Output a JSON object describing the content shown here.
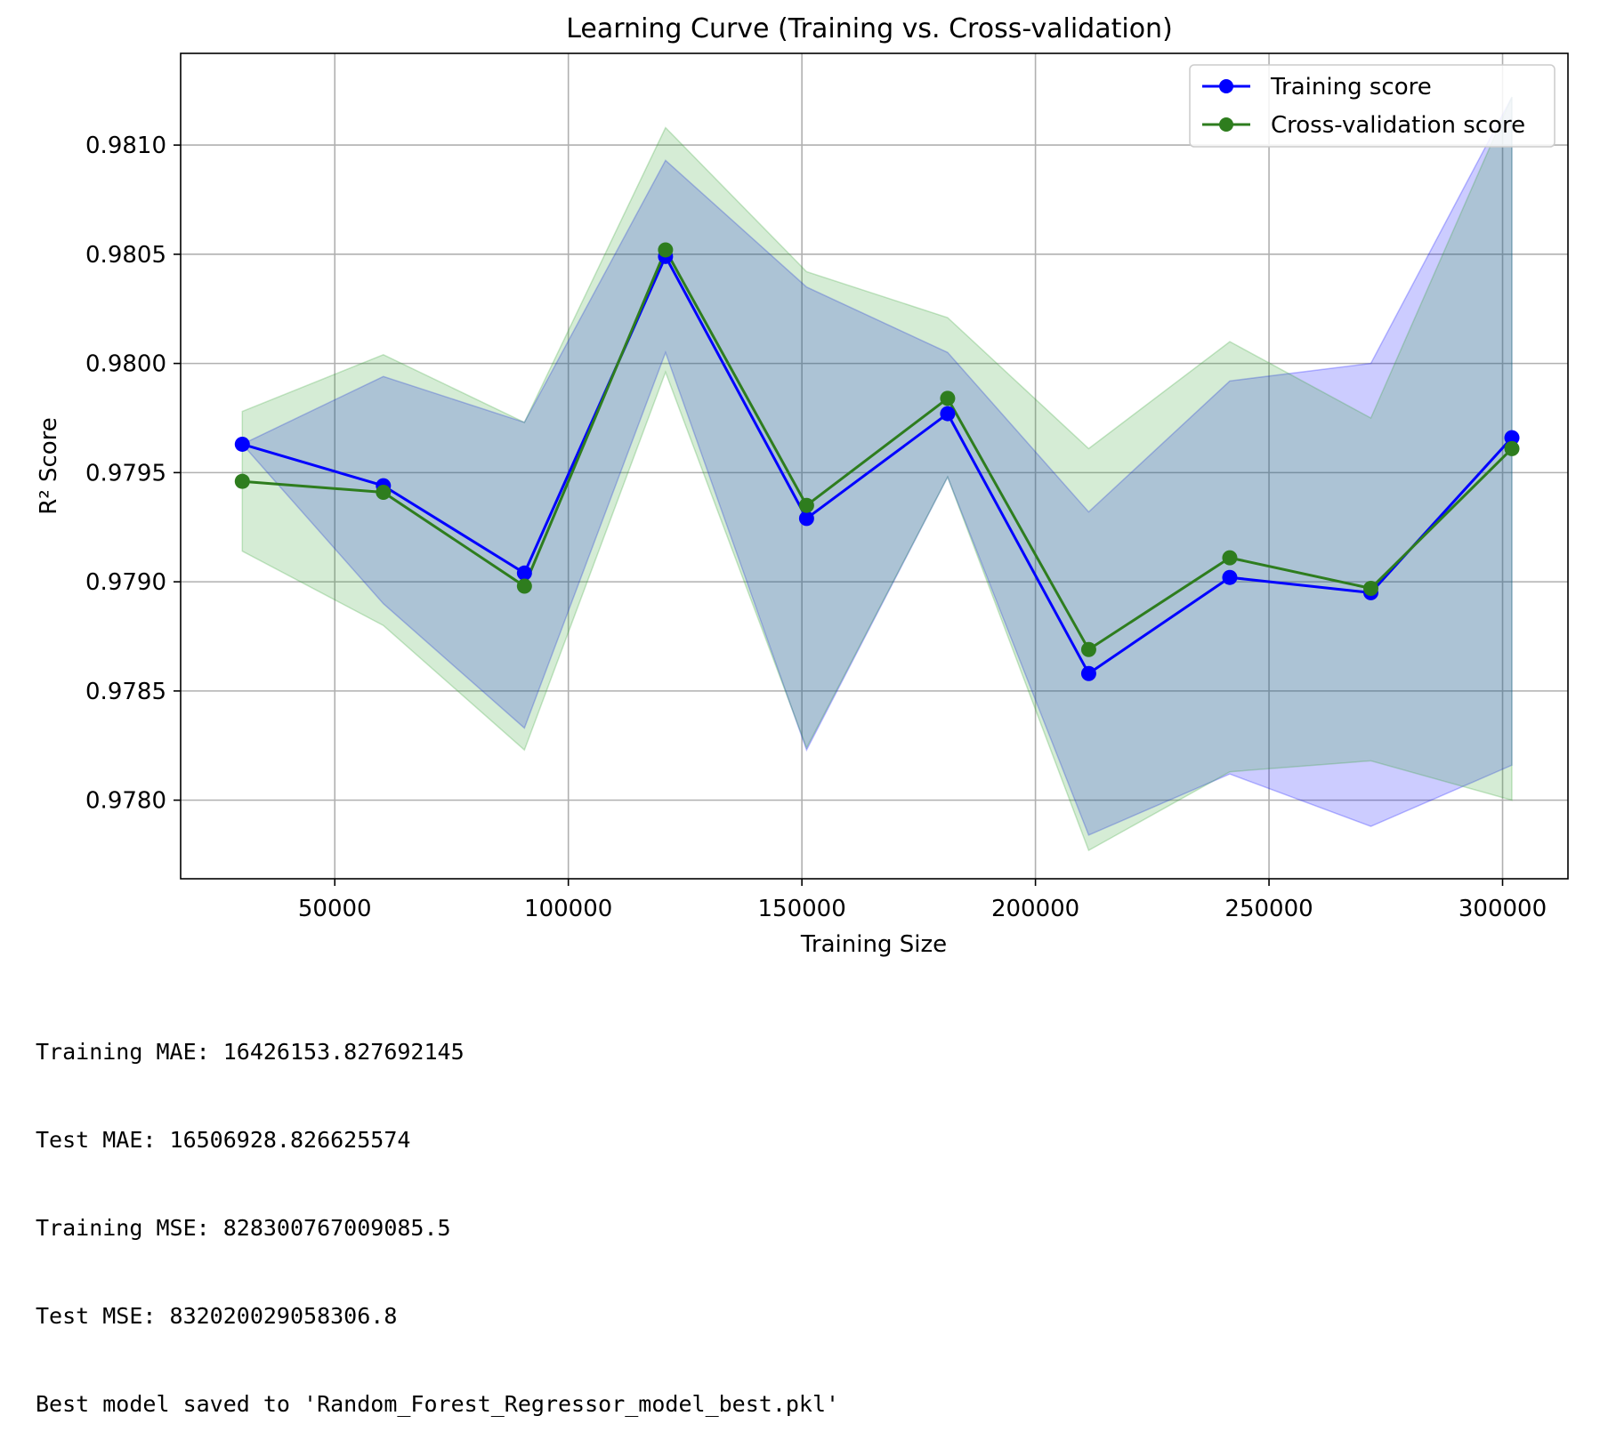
{
  "chart_data": {
    "type": "line",
    "title": "Learning Curve (Training vs. Cross-validation)",
    "xlabel": "Training Size",
    "ylabel": "R² Score",
    "xlim": [
      17000,
      314000
    ],
    "ylim": [
      0.97764,
      0.98142
    ],
    "xticks": [
      50000,
      100000,
      150000,
      200000,
      250000,
      300000
    ],
    "xtick_labels": [
      "50000",
      "100000",
      "150000",
      "200000",
      "250000",
      "300000"
    ],
    "yticks": [
      0.978,
      0.9785,
      0.979,
      0.9795,
      0.98,
      0.9805,
      0.981
    ],
    "ytick_labels": [
      "0.9780",
      "0.9785",
      "0.9790",
      "0.9795",
      "0.9800",
      "0.9805",
      "0.9810"
    ],
    "grid": true,
    "legend_position": "top-right",
    "x": [
      30200,
      60400,
      90600,
      120800,
      151000,
      181200,
      211400,
      241600,
      271800,
      302000
    ],
    "series": [
      {
        "name": "Training score",
        "color": "#0000ff",
        "band_color": "#0000ff",
        "values": [
          0.97963,
          0.97944,
          0.97904,
          0.98049,
          0.97929,
          0.97977,
          0.97858,
          0.97902,
          0.97895,
          0.97966
        ],
        "band_lower": [
          0.97963,
          0.9789,
          0.97833,
          0.98005,
          0.97823,
          0.97948,
          0.97784,
          0.97812,
          0.97788,
          0.97816
        ],
        "band_upper": [
          0.97963,
          0.97994,
          0.97973,
          0.98093,
          0.98035,
          0.98005,
          0.97932,
          0.97992,
          0.98,
          0.98122
        ]
      },
      {
        "name": "Cross-validation score",
        "color": "#2e7d1e",
        "band_color": "#2ca02c",
        "values": [
          0.97946,
          0.97941,
          0.97898,
          0.98052,
          0.97935,
          0.97984,
          0.97869,
          0.97911,
          0.97897,
          0.97961
        ],
        "band_lower": [
          0.97914,
          0.9788,
          0.97823,
          0.97996,
          0.97824,
          0.97948,
          0.97777,
          0.97813,
          0.97818,
          0.978
        ],
        "band_upper": [
          0.97978,
          0.98004,
          0.97973,
          0.98108,
          0.98042,
          0.98021,
          0.97961,
          0.9801,
          0.97975,
          0.98122
        ]
      }
    ]
  },
  "output_lines": [
    "Training MAE: 16426153.827692145",
    "Test MAE: 16506928.826625574",
    "Training MSE: 828300767009085.5",
    "Test MSE: 832020029058306.8",
    "Best model saved to 'Random_Forest_Regressor_model_best.pkl'"
  ]
}
